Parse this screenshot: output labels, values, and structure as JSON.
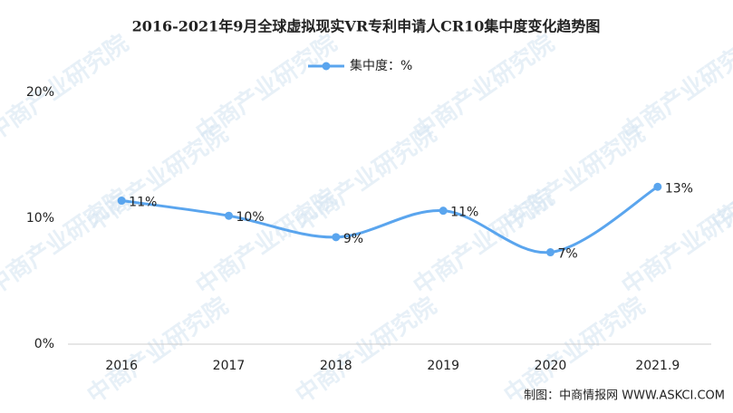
{
  "chart_data": {
    "type": "line",
    "title": "2016-2021年9月全球虚拟现实VR专利申请人CR10集中度变化趋势图",
    "categories": [
      "2016",
      "2017",
      "2018",
      "2019",
      "2020",
      "2021.9"
    ],
    "series": [
      {
        "name": "集中度：%",
        "color": "#5aa5ee",
        "values": [
          11.4,
          10.2,
          8.5,
          10.6,
          7.3,
          12.5
        ],
        "value_labels": [
          "11%",
          "10%",
          "9%",
          "11%",
          "7%",
          "13%"
        ]
      }
    ],
    "ylim": [
      0,
      20
    ],
    "yticks": [
      {
        "value": 0,
        "label": "0%"
      },
      {
        "value": 10,
        "label": "10%"
      },
      {
        "value": 20,
        "label": "20%"
      }
    ],
    "grid": false,
    "smooth": true,
    "legend": "top",
    "source": "制图：中商情报网 WWW.ASKCI.COM",
    "watermark": "中商产业研究院"
  }
}
